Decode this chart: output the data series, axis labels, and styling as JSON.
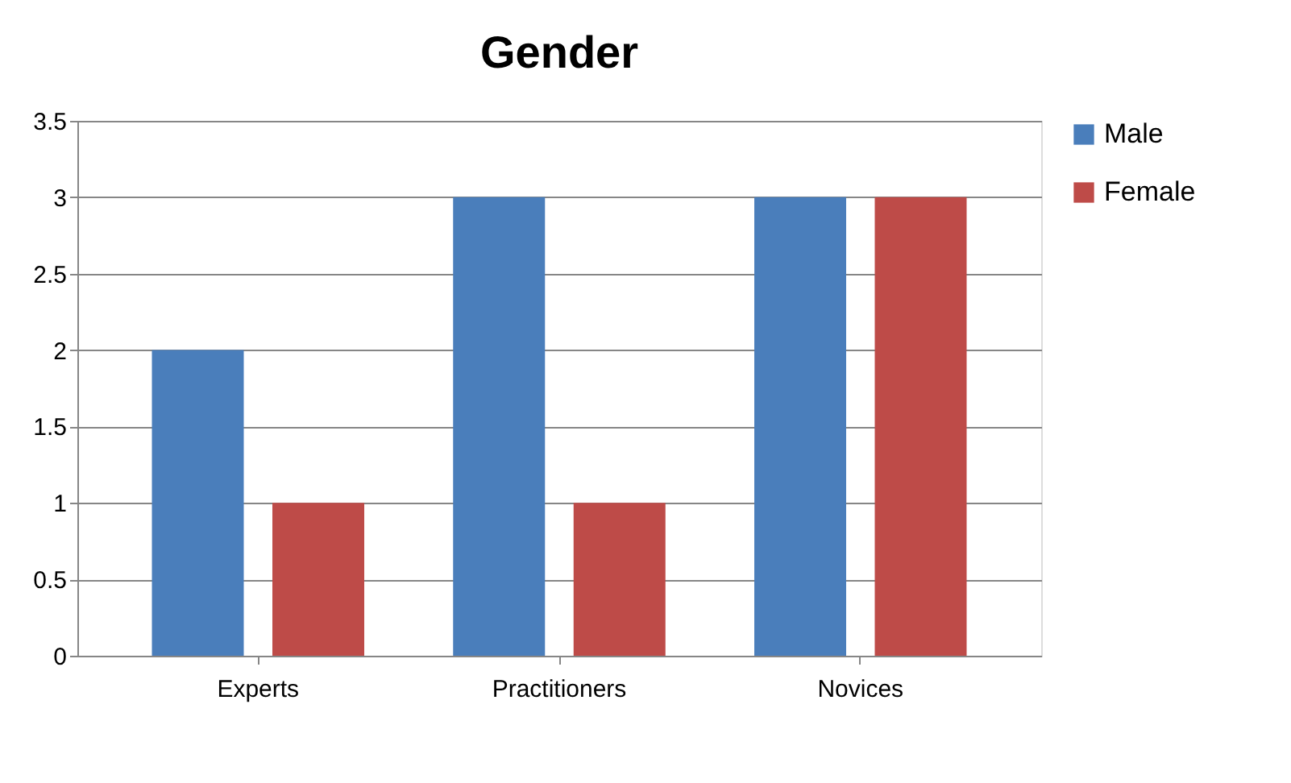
{
  "chart_data": {
    "type": "bar",
    "title": "Gender",
    "categories": [
      "Experts",
      "Practitioners",
      "Novices"
    ],
    "series": [
      {
        "name": "Male",
        "color": "#4a7ebb",
        "values": [
          2,
          3,
          3
        ]
      },
      {
        "name": "Female",
        "color": "#be4b48",
        "values": [
          1,
          1,
          3
        ]
      }
    ],
    "ylim": [
      0,
      3.5
    ],
    "yticks": [
      0,
      0.5,
      1,
      1.5,
      2,
      2.5,
      3,
      3.5
    ],
    "grid": "y",
    "legend": "right"
  }
}
